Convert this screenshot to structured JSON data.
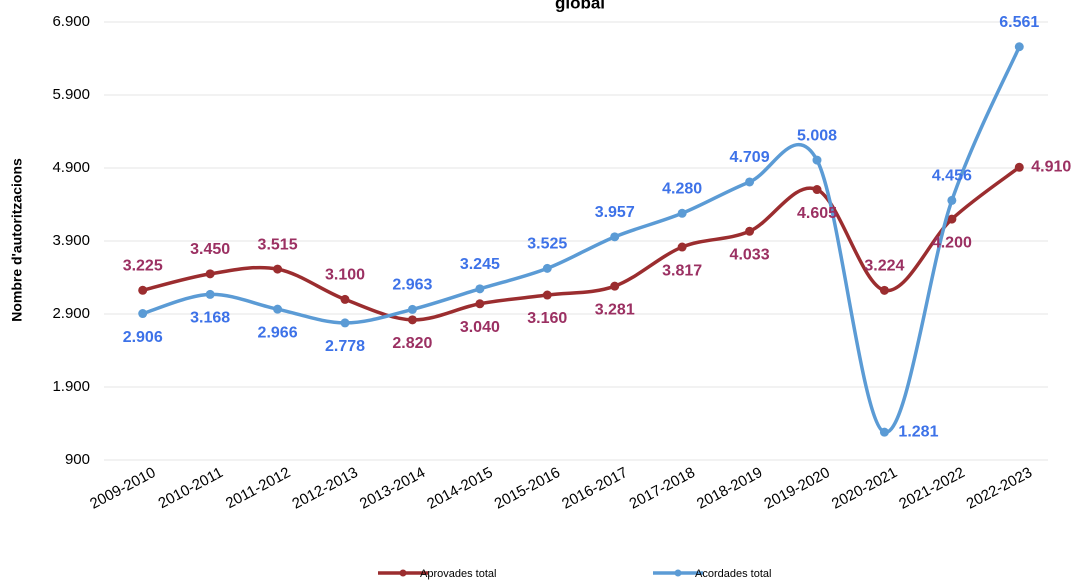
{
  "chart_data": {
    "type": "line",
    "title": "global",
    "y_label": "Nombre d'autoritzacions",
    "categories": [
      "2009-2010",
      "2010-2011",
      "2011-2012",
      "2012-2013",
      "2013-2014",
      "2014-2015",
      "2015-2016",
      "2016-2017",
      "2017-2018",
      "2018-2019",
      "2019-2020",
      "2020-2021",
      "2021-2022",
      "2022-2023"
    ],
    "series": [
      {
        "name": "Aprovades total",
        "color": "#9b2d2f",
        "label_color": "#9b3062",
        "values": [
          3225,
          3450,
          3515,
          3100,
          2820,
          3040,
          3160,
          3281,
          3817,
          4033,
          4605,
          3224,
          4200,
          4910
        ],
        "value_labels": [
          "3.225",
          "3.450",
          "3.515",
          "3.100",
          "2.820",
          "3.040",
          "3.160",
          "3.281",
          "3.817",
          "4.033",
          "4.605",
          "3.224",
          "4.200",
          "4.910"
        ]
      },
      {
        "name": "Acordades total",
        "color": "#5b9bd5",
        "label_color": "#3d72e8",
        "values": [
          2906,
          3168,
          2966,
          2778,
          2963,
          3245,
          3525,
          3957,
          4280,
          4709,
          5008,
          1281,
          4456,
          6561
        ],
        "value_labels": [
          "2.906",
          "3.168",
          "2.966",
          "2.778",
          "2.963",
          "3.245",
          "3.525",
          "3.957",
          "4.280",
          "4.709",
          "5.008",
          "1.281",
          "4.456",
          "6.561"
        ]
      }
    ],
    "ylim": [
      900,
      6900
    ],
    "yticks": [
      900,
      {
        "value": 1900,
        "label": "1.900"
      },
      {
        "value": 2900,
        "label": "2.900"
      },
      {
        "value": 3900,
        "label": "3.900"
      },
      {
        "value": 4900,
        "label": "4.900"
      },
      {
        "value": 5900,
        "label": "5.900"
      },
      {
        "value": 6900,
        "label": "6.900"
      }
    ],
    "grid": true,
    "legend": "bottom"
  }
}
